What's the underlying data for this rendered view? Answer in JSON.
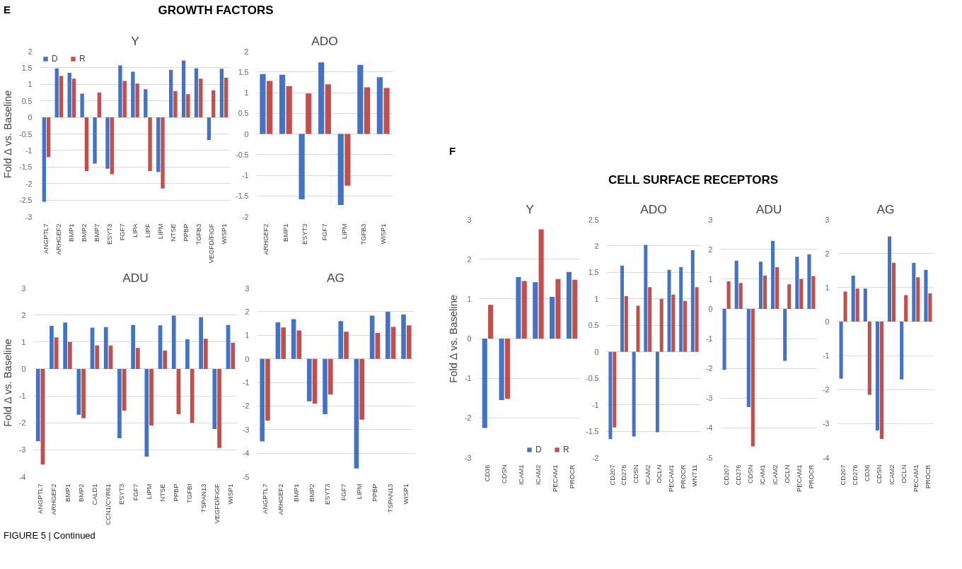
{
  "chart_data": [
    {
      "type": "bar",
      "title": "Y",
      "ylabel": "Fold Δ vs. Baseline",
      "annotations": [
        "E",
        "GROWTH FACTORS"
      ],
      "legend": "top left",
      "grid": "y",
      "categories": [
        "ANGPTL7",
        "ARHGEF2",
        "BMP1",
        "BMP2",
        "BMP7",
        "ESYT3",
        "FGF7",
        "LIPA",
        "LIPF",
        "LIPM",
        "NTSE",
        "PPBP",
        "TGFB3",
        "VEGFD/FIGF",
        "WISP1"
      ],
      "ylim": [
        -3,
        2
      ],
      "yticks": [
        -3,
        -2.5,
        -2,
        -1.5,
        -1,
        -0.5,
        0,
        0.5,
        1,
        1.5,
        2
      ],
      "series": [
        {
          "name": "D",
          "color": "#4472c4",
          "values": [
            -2.55,
            1.48,
            1.35,
            0.72,
            -1.4,
            -1.55,
            1.57,
            1.38,
            0.85,
            -1.65,
            1.44,
            1.72,
            1.48,
            -0.68,
            1.47
          ]
        },
        {
          "name": "R",
          "color": "#c0504d",
          "values": [
            -1.2,
            1.25,
            1.17,
            -1.62,
            0.75,
            -1.72,
            1.1,
            1.02,
            -1.62,
            -2.15,
            0.8,
            0.7,
            1.17,
            0.82,
            1.2
          ]
        }
      ]
    },
    {
      "type": "bar",
      "title": "ADO",
      "grid": "y",
      "categories": [
        "ARHGEF2",
        "BMP1",
        "ESYT3",
        "FGF7",
        "LIPM",
        "TGFB3",
        "WISP1"
      ],
      "ylim": [
        -2,
        2
      ],
      "yticks": [
        -2,
        -1.5,
        -1,
        -0.5,
        0,
        0.5,
        1,
        1.5,
        2
      ],
      "series": [
        {
          "color": "#4472c4",
          "values": [
            1.45,
            1.43,
            -1.58,
            1.73,
            -1.72,
            1.67,
            1.37
          ]
        },
        {
          "color": "#c0504d",
          "values": [
            1.28,
            1.16,
            0.98,
            1.2,
            -1.25,
            1.13,
            1.11
          ]
        }
      ]
    },
    {
      "type": "bar",
      "title": "ADU",
      "ylabel": "Fold Δ vs. Baseline",
      "grid": "y",
      "categories": [
        "ANGPTL7",
        "ARHGEF2",
        "BMP1",
        "BMP2",
        "CALD1",
        "CCN1/CYR61",
        "ESYT3",
        "FGF7",
        "LIPM",
        "NTSE",
        "PPBP",
        "TGFBI",
        "TSPAN13",
        "VEGFD/FIGF",
        "WISP1"
      ],
      "ylim": [
        -4,
        3
      ],
      "yticks": [
        -4,
        -3,
        -2,
        -1,
        0,
        1,
        2,
        3
      ],
      "series": [
        {
          "color": "#4472c4",
          "values": [
            -2.68,
            1.6,
            1.72,
            -1.7,
            1.53,
            1.55,
            -2.57,
            1.63,
            -3.25,
            1.62,
            1.98,
            1.1,
            1.92,
            -2.23,
            1.63
          ]
        },
        {
          "color": "#c0504d",
          "values": [
            -3.55,
            1.17,
            1.0,
            -1.83,
            0.87,
            0.87,
            -1.55,
            0.78,
            -2.1,
            0.68,
            -1.68,
            -2.0,
            1.12,
            -2.93,
            0.97
          ]
        }
      ]
    },
    {
      "type": "bar",
      "title": "AG",
      "grid": "y",
      "categories": [
        "ANGPTL7",
        "ARHGEF2",
        "BMP1",
        "BMP2",
        "ESYT3",
        "FGF7",
        "LIPM",
        "PPBP",
        "TSPAN13",
        "WISP1"
      ],
      "ylim": [
        -5,
        3
      ],
      "yticks": [
        -5,
        -4,
        -3,
        -2,
        -1,
        0,
        1,
        2,
        3
      ],
      "series": [
        {
          "color": "#4472c4",
          "values": [
            -3.5,
            1.55,
            1.68,
            -1.8,
            -2.35,
            1.6,
            -4.65,
            1.83,
            2.0,
            1.88
          ]
        },
        {
          "color": "#c0504d",
          "values": [
            -2.62,
            1.33,
            1.2,
            -1.9,
            -1.52,
            1.15,
            -2.58,
            1.1,
            1.35,
            1.42
          ]
        }
      ]
    },
    {
      "type": "bar",
      "title": "Y",
      "ylabel": "Fold Δ vs. Baseline",
      "annotations": [
        "F",
        "CELL SURFACE RECEPTORS"
      ],
      "legend": "bottom right",
      "grid": "y",
      "categories": [
        "CD36",
        "CDSN",
        "ICAM1",
        "ICAM2",
        "PECAM1",
        "PROCR"
      ],
      "ylim": [
        -3,
        3
      ],
      "yticks": [
        -3,
        -2,
        -1,
        0,
        1,
        2,
        3
      ],
      "series": [
        {
          "name": "D",
          "color": "#4472c4",
          "values": [
            -2.25,
            -1.55,
            1.55,
            1.42,
            1.05,
            1.68
          ]
        },
        {
          "name": "R",
          "color": "#c0504d",
          "values": [
            0.85,
            -1.52,
            1.45,
            2.75,
            1.5,
            1.48
          ]
        }
      ]
    },
    {
      "type": "bar",
      "title": "ADO",
      "grid": "y",
      "categories": [
        "CD207",
        "CD276",
        "CDSN",
        "ICAM2",
        "OCLN",
        "PECAM1",
        "PROCR",
        "WNT11"
      ],
      "ylim": [
        -2,
        2.5
      ],
      "yticks": [
        -2,
        -1.5,
        -1,
        -0.5,
        0,
        0.5,
        1,
        1.5,
        2,
        2.5
      ],
      "series": [
        {
          "color": "#4472c4",
          "values": [
            -1.65,
            1.63,
            -1.6,
            2.02,
            -1.52,
            1.55,
            1.6,
            1.92
          ]
        },
        {
          "color": "#c0504d",
          "values": [
            -1.43,
            1.05,
            0.87,
            1.22,
            1.0,
            1.08,
            0.96,
            1.22
          ]
        }
      ]
    },
    {
      "type": "bar",
      "title": "ADU",
      "grid": "y",
      "categories": [
        "CD207",
        "CD276",
        "CDSN",
        "ICAM1",
        "ICAM2",
        "OCLN",
        "PECAM1",
        "PROCR"
      ],
      "ylim": [
        -5,
        3
      ],
      "yticks": [
        -5,
        -4,
        -3,
        -2,
        -1,
        0,
        1,
        2,
        3
      ],
      "series": [
        {
          "color": "#4472c4",
          "values": [
            -2.05,
            1.62,
            -3.3,
            1.58,
            2.28,
            -1.75,
            1.75,
            1.83
          ]
        },
        {
          "color": "#c0504d",
          "values": [
            0.92,
            0.87,
            -4.62,
            1.12,
            1.4,
            0.82,
            1.0,
            1.1
          ]
        }
      ]
    },
    {
      "type": "bar",
      "title": "AG",
      "annotations": [
        "FIGURE 5 | Continued"
      ],
      "grid": "y",
      "categories": [
        "CD207",
        "CD276",
        "CD36",
        "CDSN",
        "ICAM2",
        "OCLN",
        "PECAM1",
        "PROCR"
      ],
      "ylim": [
        -4,
        3
      ],
      "yticks": [
        -4,
        -3,
        -2,
        -1,
        0,
        1,
        2,
        3
      ],
      "series": [
        {
          "color": "#4472c4",
          "values": [
            -1.68,
            1.35,
            0.97,
            -3.2,
            2.5,
            -1.7,
            1.72,
            1.52
          ]
        },
        {
          "color": "#c0504d",
          "values": [
            0.88,
            0.97,
            -2.15,
            -3.45,
            1.73,
            0.78,
            1.3,
            0.83
          ]
        }
      ]
    }
  ]
}
